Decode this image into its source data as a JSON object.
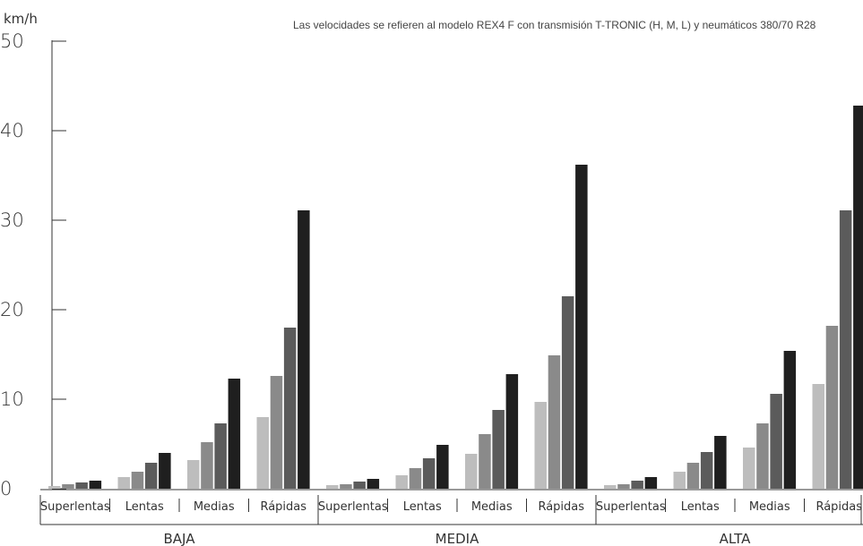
{
  "chart_data": {
    "type": "bar",
    "title": "",
    "subtitle": "",
    "note": "Las velocidades se refieren al modelo REX4 F con transmisión T-TRONIC (H, M, L) y neumáticos 380/70 R28",
    "ylabel": "km/h",
    "xlabel": "",
    "ylim": [
      0,
      50
    ],
    "yticks": [
      "0",
      "10",
      "20",
      "30",
      "40",
      "50"
    ],
    "grid": false,
    "legend": "none",
    "gear_colors": [
      "#bdbdbd",
      "#8a8a8a",
      "#5b5b5b",
      "#1f1f1f"
    ],
    "groups": [
      {
        "label": "BAJA",
        "categories": [
          {
            "label": "Superlentas",
            "values": [
              0.3,
              0.5,
              0.7,
              0.9
            ]
          },
          {
            "label": "Lentas",
            "values": [
              1.3,
              1.9,
              2.9,
              4.0
            ]
          },
          {
            "label": "Medias",
            "values": [
              3.2,
              5.2,
              7.3,
              12.3
            ]
          },
          {
            "label": "Rápidas",
            "values": [
              8.0,
              12.6,
              18.0,
              31.1
            ]
          }
        ]
      },
      {
        "label": "MEDIA",
        "categories": [
          {
            "label": "Superlentas",
            "values": [
              0.4,
              0.5,
              0.8,
              1.1
            ]
          },
          {
            "label": "Lentas",
            "values": [
              1.5,
              2.3,
              3.4,
              4.9
            ]
          },
          {
            "label": "Medias",
            "values": [
              3.9,
              6.1,
              8.8,
              12.8
            ]
          },
          {
            "label": "Rápidas",
            "values": [
              9.7,
              14.9,
              21.5,
              36.2
            ]
          }
        ]
      },
      {
        "label": "ALTA",
        "categories": [
          {
            "label": "Superlentas",
            "values": [
              0.4,
              0.5,
              0.9,
              1.3
            ]
          },
          {
            "label": "Lentas",
            "values": [
              1.9,
              2.9,
              4.1,
              5.9
            ]
          },
          {
            "label": "Medias",
            "values": [
              4.6,
              7.3,
              10.6,
              15.4
            ]
          },
          {
            "label": "Rápidas",
            "values": [
              11.7,
              18.2,
              31.1,
              42.8
            ]
          }
        ]
      }
    ]
  }
}
